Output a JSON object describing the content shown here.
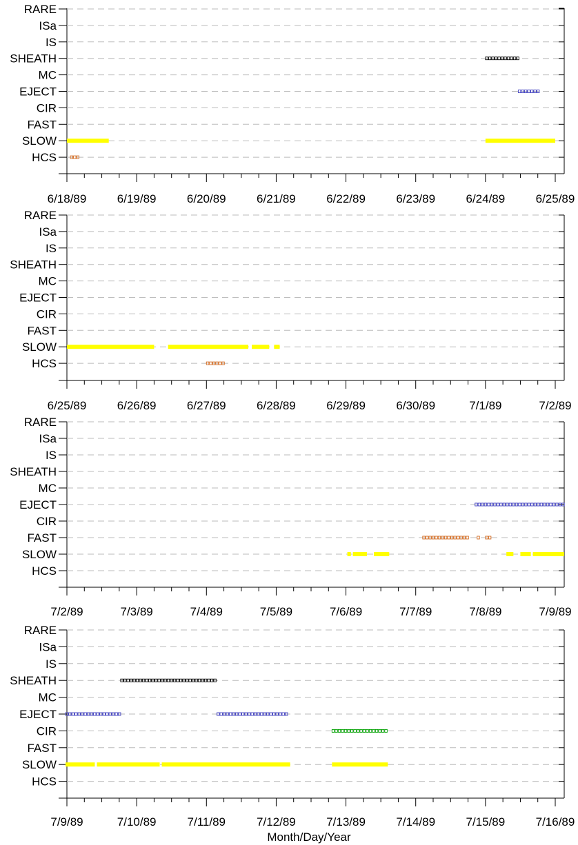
{
  "chart_data": [
    {
      "type": "timeline",
      "categories": [
        "RARE",
        "ISa",
        "IS",
        "SHEATH",
        "MC",
        "EJECT",
        "CIR",
        "FAST",
        "SLOW",
        "HCS"
      ],
      "x_ticks": [
        "6/18/89",
        "6/19/89",
        "6/20/89",
        "6/21/89",
        "6/22/89",
        "6/23/89",
        "6/24/89",
        "6/25/89"
      ],
      "x_range_days": [
        0,
        7
      ],
      "intervals": {
        "SHEATH": [
          [
            6.0,
            6.48
          ]
        ],
        "EJECT": [
          [
            6.47,
            6.8
          ]
        ],
        "SLOW": [
          [
            0.0,
            0.6
          ],
          [
            6.0,
            7.0
          ]
        ],
        "HCS": [
          [
            0.05,
            0.2
          ]
        ]
      }
    },
    {
      "type": "timeline",
      "categories": [
        "RARE",
        "ISa",
        "IS",
        "SHEATH",
        "MC",
        "EJECT",
        "CIR",
        "FAST",
        "SLOW",
        "HCS"
      ],
      "x_ticks": [
        "6/25/89",
        "6/26/89",
        "6/27/89",
        "6/28/89",
        "6/29/89",
        "6/30/89",
        "7/1/89",
        "7/2/89"
      ],
      "x_range_days": [
        0,
        7
      ],
      "intervals": {
        "SLOW": [
          [
            0.0,
            1.25
          ],
          [
            1.45,
            2.6
          ],
          [
            2.65,
            2.9
          ],
          [
            2.97,
            3.05
          ]
        ],
        "HCS": [
          [
            2.0,
            2.28
          ]
        ]
      }
    },
    {
      "type": "timeline",
      "categories": [
        "RARE",
        "ISa",
        "IS",
        "SHEATH",
        "MC",
        "EJECT",
        "CIR",
        "FAST",
        "SLOW",
        "HCS"
      ],
      "x_ticks": [
        "7/2/89",
        "7/3/89",
        "7/4/89",
        "7/5/89",
        "7/6/89",
        "7/7/89",
        "7/8/89",
        "7/9/89"
      ],
      "x_range_days": [
        0,
        7
      ],
      "intervals": {
        "EJECT": [
          [
            5.85,
            7.15
          ]
        ],
        "FAST": [
          [
            5.1,
            5.78
          ],
          [
            5.88,
            5.93
          ],
          [
            6.0,
            6.1
          ]
        ],
        "SLOW": [
          [
            4.02,
            4.07
          ],
          [
            4.1,
            4.3
          ],
          [
            4.4,
            4.62
          ],
          [
            6.3,
            6.4
          ],
          [
            6.5,
            6.65
          ],
          [
            6.68,
            7.15
          ]
        ]
      }
    },
    {
      "type": "timeline",
      "categories": [
        "RARE",
        "ISa",
        "IS",
        "SHEATH",
        "MC",
        "EJECT",
        "CIR",
        "FAST",
        "SLOW",
        "HCS"
      ],
      "x_ticks": [
        "7/9/89",
        "7/10/89",
        "7/11/89",
        "7/12/89",
        "7/13/89",
        "7/14/89",
        "7/15/89",
        "7/16/89"
      ],
      "x_range_days": [
        0,
        7
      ],
      "xlabel": "Month/Day/Year",
      "intervals": {
        "SHEATH": [
          [
            0.77,
            2.15
          ]
        ],
        "EJECT": [
          [
            -0.02,
            0.77
          ],
          [
            2.15,
            3.2
          ]
        ],
        "CIR": [
          [
            3.8,
            4.6
          ]
        ],
        "SLOW": [
          [
            -0.02,
            0.4
          ],
          [
            0.43,
            1.33
          ],
          [
            1.36,
            3.2
          ],
          [
            3.8,
            4.6
          ]
        ]
      }
    }
  ],
  "colors": {
    "SLOW": "#ffff00",
    "HCS": "#d2691e",
    "FAST": "#d2691e",
    "SHEATH": "#000000",
    "EJECT": "#4040c0",
    "CIR": "#00a000",
    "grid": "#bbbbbb"
  }
}
